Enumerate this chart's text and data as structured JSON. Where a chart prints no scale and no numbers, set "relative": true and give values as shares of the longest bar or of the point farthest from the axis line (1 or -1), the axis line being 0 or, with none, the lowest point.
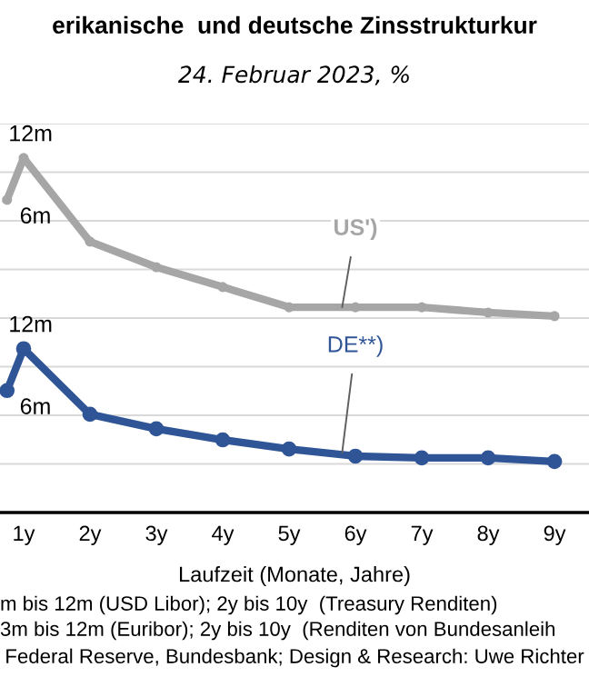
{
  "chart_data": {
    "type": "line",
    "title": "erikanische  und deutsche Zinsstrukturkur",
    "subtitle": "24. Februar 2023, %",
    "xlabel": "Laufzeit (Monate, Jahre)",
    "relative": true,
    "x": [
      0.75,
      1,
      2,
      3,
      4,
      5,
      6,
      7,
      8,
      9
    ],
    "xlim": [
      0.644,
      9.52
    ],
    "xticks": [
      {
        "value": 1,
        "label": "1y"
      },
      {
        "value": 2,
        "label": "2y"
      },
      {
        "value": 3,
        "label": "3y"
      },
      {
        "value": 4,
        "label": "4y"
      },
      {
        "value": 5,
        "label": "5y"
      },
      {
        "value": 6,
        "label": "6y"
      },
      {
        "value": 7,
        "label": "7y"
      },
      {
        "value": 8,
        "label": "8y"
      },
      {
        "value": 9,
        "label": "9y"
      }
    ],
    "series": [
      {
        "name": "US')",
        "color": "#a6a6a6",
        "values": [
          0.882,
          1.0,
          0.764,
          0.692,
          0.636,
          0.579,
          0.579,
          0.579,
          0.564,
          0.554
        ]
      },
      {
        "name": "DE**)",
        "color": "#2f5597",
        "values": [
          0.344,
          0.462,
          0.277,
          0.236,
          0.205,
          0.179,
          0.159,
          0.154,
          0.154,
          0.144
        ]
      }
    ],
    "annotations": [
      "12m",
      "6m",
      "12m",
      "6m",
      "m bis 12m (USD Libor); 2y bis 10y  (Treasury Renditen)",
      "3m bis 12m (Euribor); 2y bis 10y  (Renditen von Bundesanleih",
      "Federal Reserve, Bundesbank; Design & Research: Uwe Richter"
    ],
    "grid": "y",
    "legend": false,
    "marker": "circle",
    "line_style": "solid"
  }
}
